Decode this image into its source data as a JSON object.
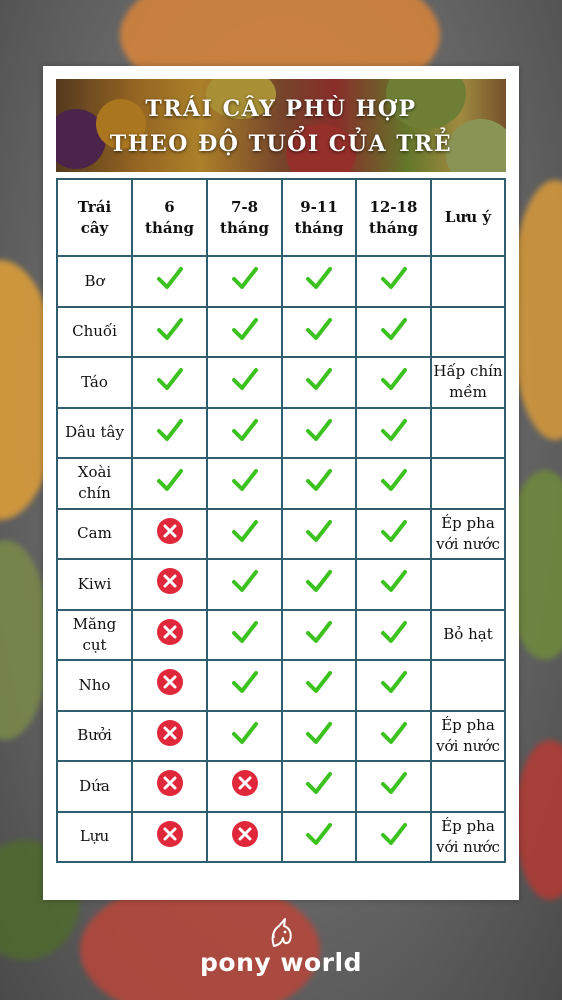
{
  "title_line1": "TRÁI CÂY PHÙ HỢP",
  "title_line2": "THEO ĐỘ TUỔI CỦA TRẺ",
  "headers": {
    "fruit": [
      "Trái",
      "cây"
    ],
    "m6": [
      "6",
      "tháng"
    ],
    "m7_8": [
      "7-8",
      "tháng"
    ],
    "m9_11": [
      "9-11",
      "tháng"
    ],
    "m12_18": [
      "12-18",
      "tháng"
    ],
    "note": "Lưu ý"
  },
  "rows": [
    {
      "fruit": [
        "Bơ"
      ],
      "m6": true,
      "m7_8": true,
      "m9_11": true,
      "m12_18": true,
      "note": []
    },
    {
      "fruit": [
        "Chuối"
      ],
      "m6": true,
      "m7_8": true,
      "m9_11": true,
      "m12_18": true,
      "note": []
    },
    {
      "fruit": [
        "Táo"
      ],
      "m6": true,
      "m7_8": true,
      "m9_11": true,
      "m12_18": true,
      "note": [
        "Hấp chín",
        "mềm"
      ]
    },
    {
      "fruit": [
        "Dâu tây"
      ],
      "m6": true,
      "m7_8": true,
      "m9_11": true,
      "m12_18": true,
      "note": []
    },
    {
      "fruit": [
        "Xoài",
        "chín"
      ],
      "m6": true,
      "m7_8": true,
      "m9_11": true,
      "m12_18": true,
      "note": []
    },
    {
      "fruit": [
        "Cam"
      ],
      "m6": false,
      "m7_8": true,
      "m9_11": true,
      "m12_18": true,
      "note": [
        "Ép pha",
        "với nước"
      ]
    },
    {
      "fruit": [
        "Kiwi"
      ],
      "m6": false,
      "m7_8": true,
      "m9_11": true,
      "m12_18": true,
      "note": []
    },
    {
      "fruit": [
        "Măng",
        "cụt"
      ],
      "m6": false,
      "m7_8": true,
      "m9_11": true,
      "m12_18": true,
      "note": [
        "Bỏ hạt"
      ]
    },
    {
      "fruit": [
        "Nho"
      ],
      "m6": false,
      "m7_8": true,
      "m9_11": true,
      "m12_18": true,
      "note": []
    },
    {
      "fruit": [
        "Bưởi"
      ],
      "m6": false,
      "m7_8": true,
      "m9_11": true,
      "m12_18": true,
      "note": [
        "Ép pha",
        "với nước"
      ]
    },
    {
      "fruit": [
        "Dứa"
      ],
      "m6": false,
      "m7_8": false,
      "m9_11": true,
      "m12_18": true,
      "note": []
    },
    {
      "fruit": [
        "Lựu"
      ],
      "m6": false,
      "m7_8": false,
      "m9_11": true,
      "m12_18": true,
      "note": [
        "Ép pha",
        "với nước"
      ]
    }
  ],
  "icons": {
    "yes": "green-check-icon",
    "no": "red-x-circle-icon"
  },
  "colors": {
    "check": "#3cc21f",
    "cross": "#e0283a",
    "border": "#2f5f6f"
  },
  "brand": "pony world"
}
